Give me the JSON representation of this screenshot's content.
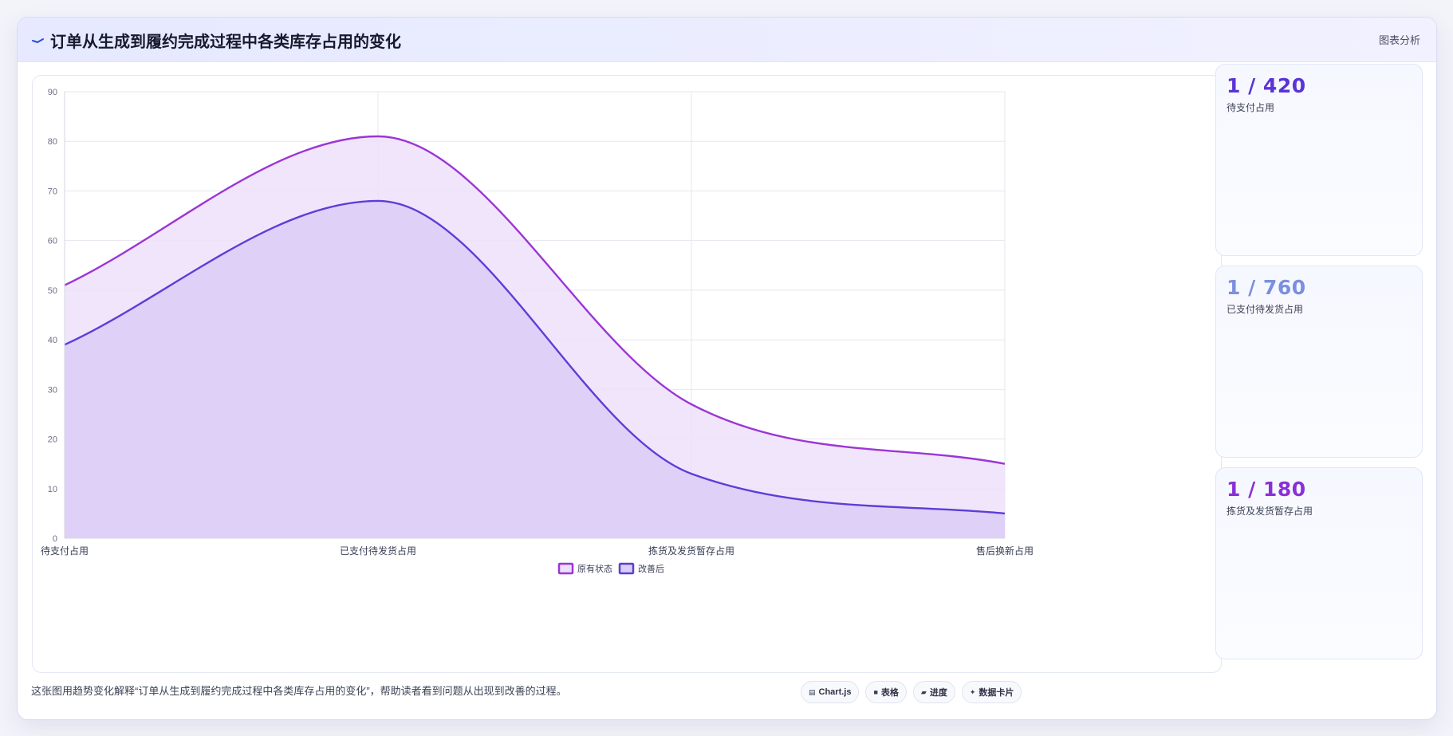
{
  "header": {
    "title": "订单从生成到履约完成过程中各类库存占用的变化",
    "tag": "图表分析"
  },
  "chart_data": {
    "type": "area",
    "categories": [
      "待支付占用",
      "已支付待发货占用",
      "拣货及发货暂存占用",
      "售后换新占用"
    ],
    "series": [
      {
        "name": "原有状态",
        "values": [
          51,
          81,
          27,
          15
        ],
        "color": "#9b35d6",
        "fill": "#ede1fa"
      },
      {
        "name": "改善后",
        "values": [
          39,
          68,
          13,
          5
        ],
        "color": "#5a3fd6",
        "fill": "#dccdf7"
      }
    ],
    "ylim": [
      0,
      90
    ],
    "yticks": [
      0,
      10,
      20,
      30,
      40,
      50,
      60,
      70,
      80,
      90
    ],
    "grid": true,
    "legend": "bottom"
  },
  "stats": [
    {
      "value": "1 / 420",
      "label": "待支付占用",
      "color": "#5b34d6"
    },
    {
      "value": "1 / 760",
      "label": "已支付待发货占用",
      "color": "#7b8fdf"
    },
    {
      "value": "1 / 180",
      "label": "拣货及发货暂存占用",
      "color": "#8a30d6"
    }
  ],
  "footer": {
    "description": "这张图用趋势变化解释“订单从生成到履约完成过程中各类库存占用的变化”，帮助读者看到问题从出现到改善的过程。",
    "tags": [
      {
        "icon": "▤",
        "label": "Chart.js"
      },
      {
        "icon": "■",
        "label": "表格"
      },
      {
        "icon": "▰",
        "label": "进度"
      },
      {
        "icon": "✦",
        "label": "数据卡片"
      }
    ]
  }
}
